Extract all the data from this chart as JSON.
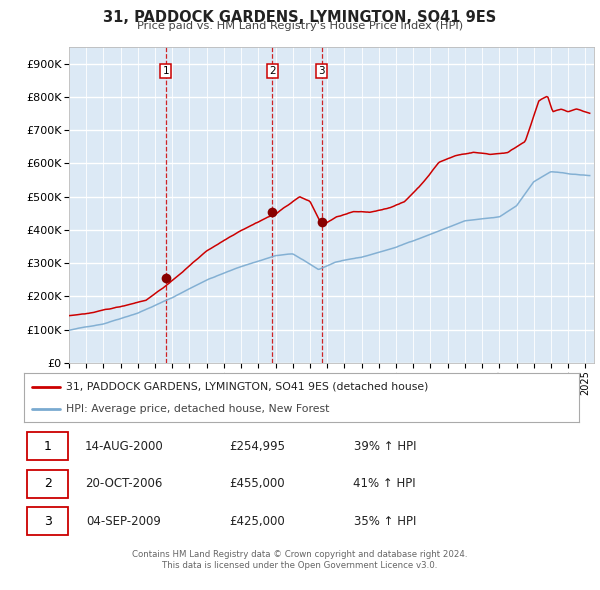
{
  "title": "31, PADDOCK GARDENS, LYMINGTON, SO41 9ES",
  "subtitle": "Price paid vs. HM Land Registry's House Price Index (HPI)",
  "background_color": "#ffffff",
  "plot_bg_color": "#dce9f5",
  "grid_color": "#ffffff",
  "grid_minor_color": "#c8d8e8",
  "red_line_color": "#cc0000",
  "blue_line_color": "#7aaad0",
  "sale_dot_color": "#880000",
  "vline_color": "#cc0000",
  "yticks": [
    0,
    100000,
    200000,
    300000,
    400000,
    500000,
    600000,
    700000,
    800000,
    900000
  ],
  "ytick_labels": [
    "£0",
    "£100K",
    "£200K",
    "£300K",
    "£400K",
    "£500K",
    "£600K",
    "£700K",
    "£800K",
    "£900K"
  ],
  "xmin": 1995.0,
  "xmax": 2025.5,
  "ymin": 0,
  "ymax": 950000,
  "sales": [
    {
      "num": 1,
      "date_str": "14-AUG-2000",
      "date_x": 2000.617,
      "price": 254995,
      "pct": "39%",
      "dir": "↑"
    },
    {
      "num": 2,
      "date_str": "20-OCT-2006",
      "date_x": 2006.803,
      "price": 455000,
      "pct": "41%",
      "dir": "↑"
    },
    {
      "num": 3,
      "date_str": "04-SEP-2009",
      "date_x": 2009.676,
      "price": 425000,
      "pct": "35%",
      "dir": "↑"
    }
  ],
  "legend_line1": "31, PADDOCK GARDENS, LYMINGTON, SO41 9ES (detached house)",
  "legend_line2": "HPI: Average price, detached house, New Forest",
  "footer1": "Contains HM Land Registry data © Crown copyright and database right 2024.",
  "footer2": "This data is licensed under the Open Government Licence v3.0.",
  "table_border_color": "#cc0000",
  "hpi_anchors_x": [
    1995.0,
    1997.0,
    1999.0,
    2001.0,
    2003.0,
    2005.0,
    2007.0,
    2008.0,
    2009.5,
    2010.5,
    2012.0,
    2014.0,
    2016.0,
    2018.0,
    2020.0,
    2021.0,
    2022.0,
    2023.0,
    2024.0,
    2025.25
  ],
  "hpi_anchors_y": [
    98000,
    118000,
    152000,
    198000,
    252000,
    292000,
    325000,
    330000,
    282000,
    305000,
    318000,
    348000,
    388000,
    428000,
    438000,
    472000,
    545000,
    575000,
    568000,
    562000
  ],
  "red_anchors_x": [
    1995.0,
    1996.5,
    1998.0,
    1999.5,
    2001.0,
    2003.0,
    2005.0,
    2006.5,
    2007.0,
    2008.4,
    2009.0,
    2009.7,
    2010.5,
    2011.5,
    2012.5,
    2013.5,
    2014.5,
    2015.5,
    2016.5,
    2017.5,
    2018.5,
    2019.5,
    2020.5,
    2021.5,
    2022.3,
    2022.8,
    2023.1,
    2023.6,
    2024.0,
    2024.5,
    2025.25
  ],
  "red_anchors_y": [
    142000,
    152000,
    168000,
    190000,
    248000,
    338000,
    402000,
    442000,
    452000,
    505000,
    490000,
    418000,
    442000,
    458000,
    455000,
    468000,
    488000,
    542000,
    608000,
    628000,
    638000,
    632000,
    638000,
    672000,
    795000,
    808000,
    760000,
    768000,
    760000,
    768000,
    755000
  ]
}
